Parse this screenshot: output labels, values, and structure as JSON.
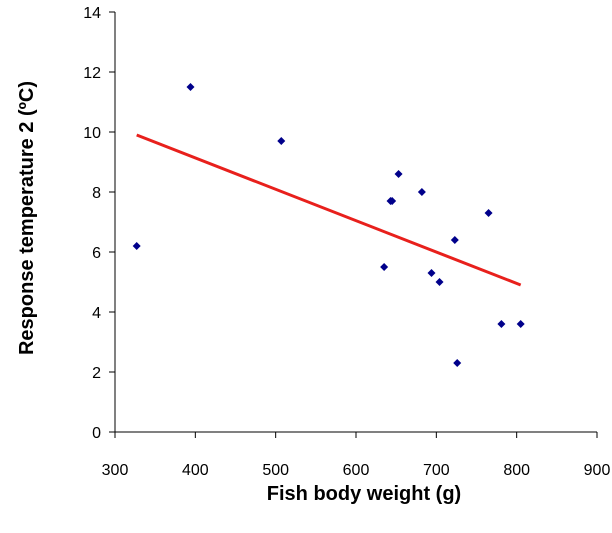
{
  "chart_data": {
    "type": "scatter",
    "xlabel": "Fish body weight (g)",
    "ylabel": "Response temperature 2 (ºC)",
    "xlim": [
      300,
      900
    ],
    "ylim": [
      0,
      14
    ],
    "x_ticks": [
      300,
      400,
      500,
      600,
      700,
      800,
      900
    ],
    "y_ticks": [
      0,
      2,
      4,
      6,
      8,
      10,
      12,
      14
    ],
    "x_tick_labels": [
      "300",
      "400",
      "500",
      "600",
      "700",
      "800",
      "900"
    ],
    "y_tick_labels": [
      "0",
      "2",
      "4",
      "6",
      "8",
      "10",
      "12",
      "14"
    ],
    "grid": false,
    "legend": "none",
    "series": [
      {
        "marker": "diamond",
        "color": "#00008B",
        "points": [
          {
            "x": 327,
            "y": 6.2
          },
          {
            "x": 394,
            "y": 11.5
          },
          {
            "x": 507,
            "y": 9.7
          },
          {
            "x": 635,
            "y": 5.5
          },
          {
            "x": 643,
            "y": 7.7
          },
          {
            "x": 645,
            "y": 7.7
          },
          {
            "x": 653,
            "y": 8.6
          },
          {
            "x": 682,
            "y": 8.0
          },
          {
            "x": 694,
            "y": 5.3
          },
          {
            "x": 704,
            "y": 5.0
          },
          {
            "x": 723,
            "y": 6.4
          },
          {
            "x": 726,
            "y": 2.3
          },
          {
            "x": 765,
            "y": 7.3
          },
          {
            "x": 781,
            "y": 3.6
          },
          {
            "x": 805,
            "y": 3.6
          }
        ]
      }
    ],
    "trendline": {
      "type": "linear",
      "color": "#E8201C",
      "x_start": 327,
      "y_start": 9.9,
      "x_end": 805,
      "y_end": 4.9
    }
  }
}
